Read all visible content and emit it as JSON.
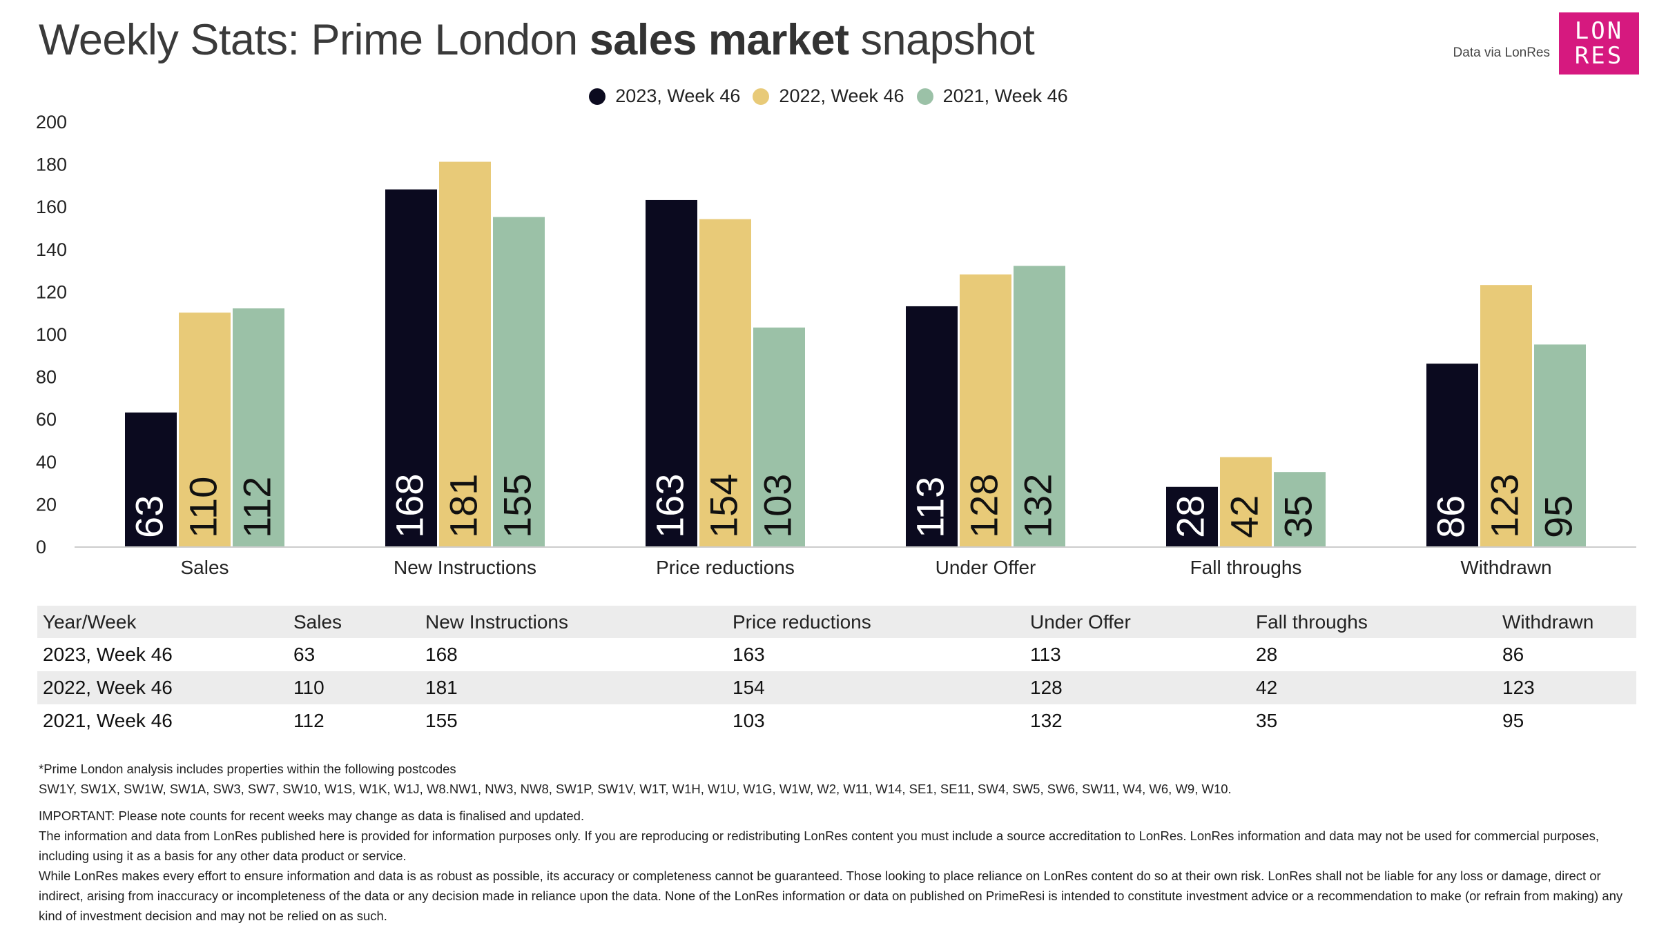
{
  "header": {
    "title_pre": "Weekly Stats: Prime London ",
    "title_bold": "sales market",
    "title_post": " snapshot",
    "attribution": "Data via LonRes",
    "logo_line1": "LON",
    "logo_line2": "RES"
  },
  "colors": {
    "series_2023": "#0b0a1f",
    "series_2022": "#e8ca78",
    "series_2021": "#9bc1a7",
    "logo_bg": "#d6197f"
  },
  "chart_data": {
    "type": "bar",
    "title": "Weekly Stats: Prime London sales market snapshot",
    "categories": [
      "Sales",
      "New Instructions",
      "Price reductions",
      "Under Offer",
      "Fall throughs",
      "Withdrawn"
    ],
    "series": [
      {
        "name": "2023, Week 46",
        "values": [
          63,
          168,
          163,
          113,
          28,
          86
        ]
      },
      {
        "name": "2022, Week 46",
        "values": [
          110,
          181,
          154,
          128,
          42,
          123
        ]
      },
      {
        "name": "2021, Week 46",
        "values": [
          112,
          155,
          103,
          132,
          35,
          95
        ]
      }
    ],
    "yticks": [
      0,
      20,
      40,
      60,
      80,
      100,
      120,
      140,
      160,
      180,
      200
    ],
    "ylim": [
      0,
      200
    ],
    "xlabel": "",
    "ylabel": "",
    "legend_position": "top-center",
    "grid": false
  },
  "table": {
    "headers": [
      "Year/Week",
      "Sales",
      "New Instructions",
      "Price reductions",
      "Under Offer",
      "Fall throughs",
      "Withdrawn"
    ],
    "rows": [
      [
        "2023, Week 46",
        "63",
        "168",
        "163",
        "113",
        "28",
        "86"
      ],
      [
        "2022, Week 46",
        "110",
        "181",
        "154",
        "128",
        "42",
        "123"
      ],
      [
        "2021, Week 46",
        "112",
        "155",
        "103",
        "132",
        "35",
        "95"
      ]
    ]
  },
  "notes": {
    "postcodes_heading": "*Prime London analysis includes properties within the following postcodes",
    "postcodes_list": "SW1Y, SW1X, SW1W, SW1A, SW3, SW7, SW10, W1S, W1K, W1J, W8.NW1, NW3, NW8, SW1P, SW1V, W1T, W1H, W1U, W1G, W1W, W2, W11, W14, SE1, SE11, SW4, SW5, SW6, SW11, W4, W6, W9, W10.",
    "important": "IMPORTANT: Please note counts for recent weeks may change as data is finalised and updated.",
    "usage": "The information and data from LonRes published here is provided for information purposes only. If you are reproducing or redistributing LonRes content you must include a source accreditation to LonRes. LonRes information and data may not be used for commercial purposes, including using it as a basis for any other data product or service.",
    "disclaimer": "While LonRes makes every effort to ensure information and data is as robust as possible, its accuracy or completeness cannot be guaranteed. Those looking to place reliance on LonRes content do so at their own risk. LonRes shall not be liable for any loss or damage, direct or indirect, arising from inaccuracy or incompleteness of the data or any decision made in reliance upon the data. None of the LonRes information or data on published on PrimeResi is intended to constitute investment advice or a recommendation to make (or refrain from making) any kind of investment decision and may not be relied on as such."
  }
}
